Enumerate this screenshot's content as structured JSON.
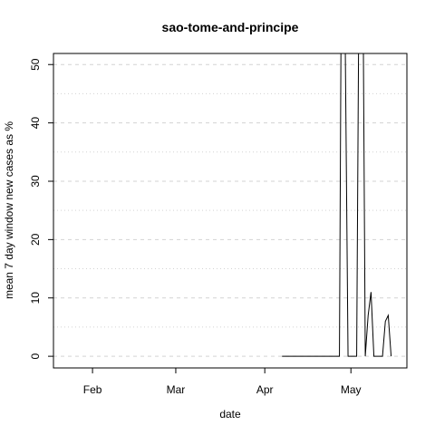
{
  "chart_data": {
    "type": "line",
    "title": "sao-tome-and-principe",
    "xlabel": "date",
    "ylabel": "mean  7  day window new cases as %",
    "x": [
      98,
      99,
      100,
      101,
      102,
      103,
      104,
      105,
      106,
      107,
      108,
      109,
      110,
      111,
      112,
      113,
      114,
      115,
      116,
      117,
      118,
      119,
      120,
      121,
      122,
      123,
      124,
      125,
      126,
      127,
      128,
      129,
      130,
      131,
      132,
      133,
      134,
      135,
      136
    ],
    "series": [
      {
        "name": "sao-tome-and-principe",
        "color": "#000000",
        "values": [
          0,
          0,
          0,
          0,
          0,
          0,
          0,
          0,
          0,
          0,
          0,
          0,
          0,
          0,
          0,
          0,
          0,
          0,
          0,
          0,
          0,
          100,
          55,
          0,
          0,
          0,
          0,
          80,
          80,
          0,
          7,
          11,
          0,
          0,
          0,
          0,
          6,
          7,
          0
        ]
      }
    ],
    "xlim": [
      18.4,
      141.5
    ],
    "xticks": [
      {
        "value": 32,
        "label": "Feb"
      },
      {
        "value": 61,
        "label": "Mar"
      },
      {
        "value": 92,
        "label": "Apr"
      },
      {
        "value": 122,
        "label": "May"
      }
    ],
    "ylim": [
      -2.0,
      51.9
    ],
    "yticks": [
      0,
      10,
      20,
      30,
      40,
      50
    ],
    "minor_grid": [
      5,
      15,
      25,
      35,
      45
    ],
    "grid": true
  }
}
